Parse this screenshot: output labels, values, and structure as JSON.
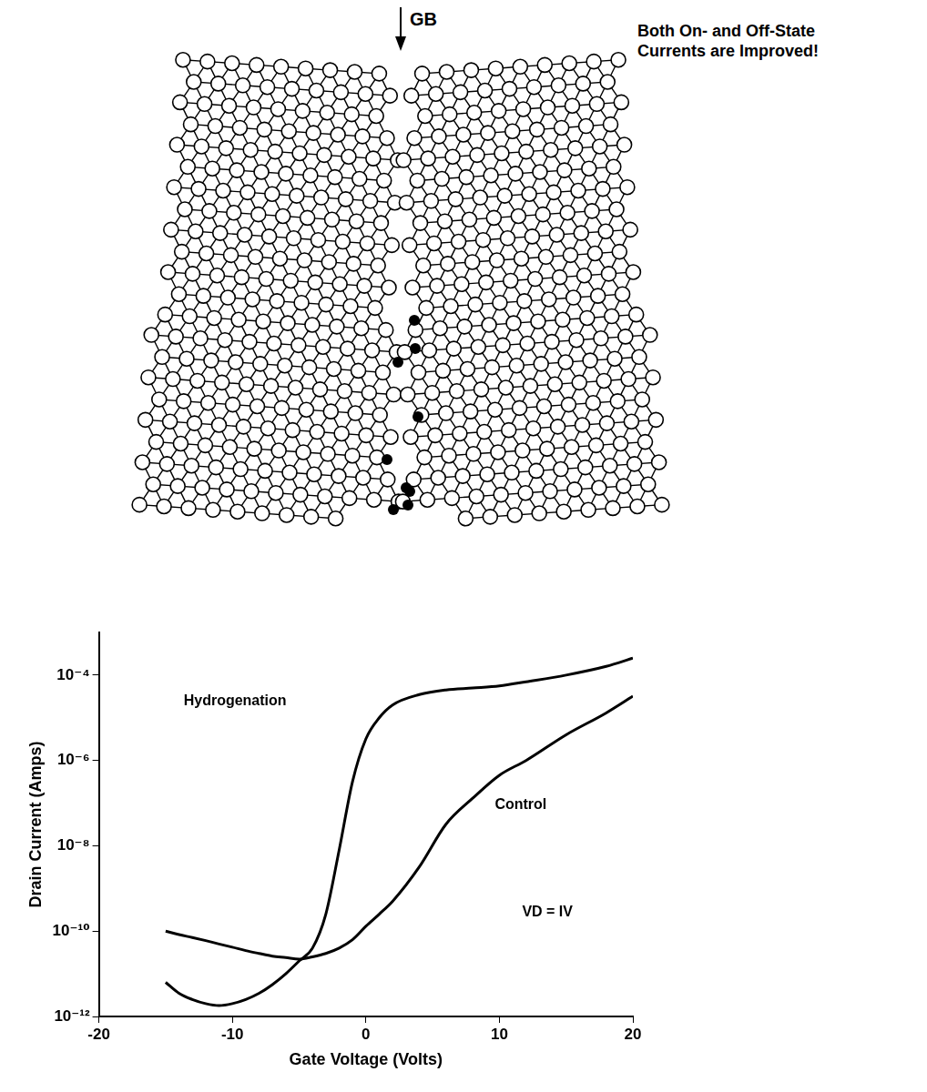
{
  "diagram": {
    "marker_label": "GB",
    "caption": "Both On- and Off-State Currents are Improved!"
  },
  "chart_data": {
    "type": "line",
    "x_label": "Gate Voltage (Volts)",
    "y_label": "Drain Current (Amps)",
    "log": "y",
    "grid": false,
    "xlim": [
      -20,
      20
    ],
    "xticks": [
      -20,
      -10,
      0,
      10,
      20
    ],
    "ylim": [
      1e-12,
      0.001
    ],
    "yticks": [
      {
        "value": 1e-12,
        "label": "10⁻¹²"
      },
      {
        "value": 1e-10,
        "label": "10⁻¹⁰"
      },
      {
        "value": 1e-08,
        "label": "10⁻⁸"
      },
      {
        "value": 1e-06,
        "label": "10⁻⁶"
      },
      {
        "value": 0.0001,
        "label": "10⁻⁴"
      }
    ],
    "annotations": [
      "VD = IV"
    ],
    "x": [
      -15,
      -14,
      -13,
      -12,
      -11,
      -10,
      -9,
      -8,
      -7,
      -6,
      -5,
      -4,
      -3,
      -2,
      -1,
      0,
      1,
      2,
      4,
      6,
      8,
      10,
      12,
      15,
      18,
      20
    ],
    "series": [
      {
        "name": "Hydrogenation",
        "color": "#000000",
        "marker": "none",
        "line_style": "solid",
        "values": [
          6.3e-12,
          3.5e-12,
          2.5e-12,
          2e-12,
          1.8e-12,
          2e-12,
          2.5e-12,
          3.5e-12,
          5.6e-12,
          1e-11,
          2e-11,
          4e-11,
          2.5e-10,
          8e-09,
          3.2e-07,
          3.2e-06,
          1e-05,
          2e-05,
          3.5e-05,
          4.5e-05,
          5e-05,
          5.6e-05,
          7e-05,
          0.0001,
          0.00016,
          0.00025
        ]
      },
      {
        "name": "Control",
        "color": "#000000",
        "marker": "none",
        "line_style": "solid",
        "values": [
          1e-10,
          8.3e-11,
          7.1e-11,
          6e-11,
          5e-11,
          4.2e-11,
          3.5e-11,
          3e-11,
          2.6e-11,
          2.4e-11,
          2.2e-11,
          2.5e-11,
          3e-11,
          4e-11,
          6.3e-11,
          1.3e-10,
          2.5e-10,
          5e-10,
          3.2e-09,
          3.2e-08,
          1.3e-07,
          4.5e-07,
          1e-06,
          4e-06,
          1.3e-05,
          3.2e-05
        ]
      }
    ]
  }
}
